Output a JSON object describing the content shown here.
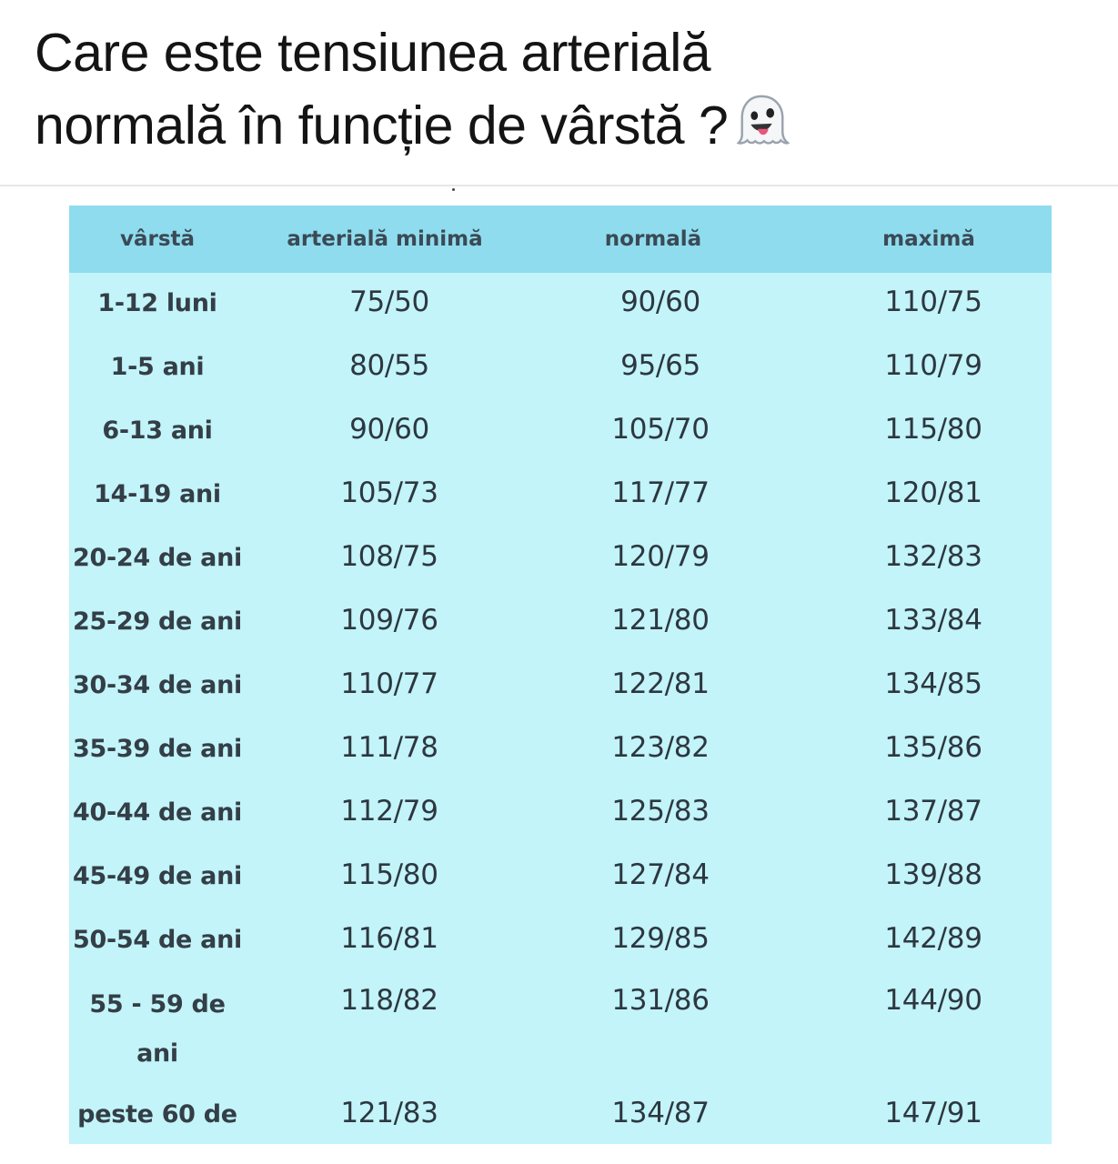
{
  "post": {
    "title_line1": "Care este tensiunea arterială",
    "title_line2": "normală în funcție de vârstă ?",
    "emoji": "ghost-icon"
  },
  "table": {
    "colors": {
      "header_bg": "#8fdcee",
      "body_bg": "#c2f4f9"
    },
    "headers": [
      "vârstă",
      "arterială minimă",
      "normală",
      "maximă"
    ],
    "rows": [
      [
        "1-12 luni",
        "75/50",
        "90/60",
        "110/75"
      ],
      [
        "1-5 ani",
        "80/55",
        "95/65",
        "110/79"
      ],
      [
        "6-13 ani",
        "90/60",
        "105/70",
        "115/80"
      ],
      [
        "14-19 ani",
        "105/73",
        "117/77",
        "120/81"
      ],
      [
        "20-24 de ani",
        "108/75",
        "120/79",
        "132/83"
      ],
      [
        "25-29 de ani",
        "109/76",
        "121/80",
        "133/84"
      ],
      [
        "30-34 de ani",
        "110/77",
        "122/81",
        "134/85"
      ],
      [
        "35-39 de ani",
        "111/78",
        "123/82",
        "135/86"
      ],
      [
        "40-44 de ani",
        "112/79",
        "125/83",
        "137/87"
      ],
      [
        "45-49 de ani",
        "115/80",
        "127/84",
        "139/88"
      ],
      [
        "50-54 de ani",
        "116/81",
        "129/85",
        "142/89"
      ],
      [
        "55 - 59 de ani",
        "118/82",
        "131/86",
        "144/90"
      ],
      [
        "peste 60 de",
        "121/83",
        "134/87",
        "147/91"
      ]
    ]
  }
}
